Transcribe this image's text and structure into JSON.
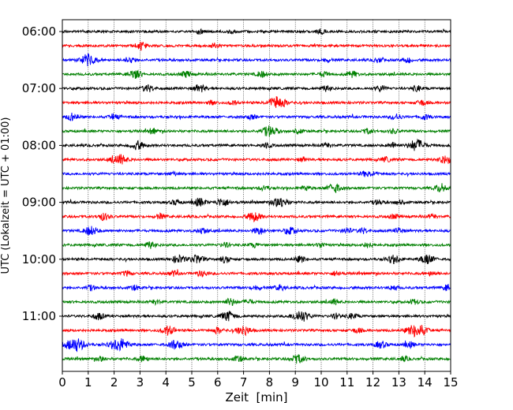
{
  "chart_data": {
    "type": "line",
    "title": "",
    "xlabel": "Zeit  [min]",
    "ylabel": "UTC (Lokalzeit = UTC + 01:00)",
    "xlim": [
      0,
      15
    ],
    "x_ticks": [
      0,
      1,
      2,
      3,
      4,
      5,
      6,
      7,
      8,
      9,
      10,
      11,
      12,
      13,
      14,
      15
    ],
    "x_grid": true,
    "y_grid": false,
    "legend": "none",
    "row_interval_minutes": 15,
    "y_ticks": [
      {
        "label": "06:00",
        "row": 0
      },
      {
        "label": "07:00",
        "row": 4
      },
      {
        "label": "08:00",
        "row": 8
      },
      {
        "label": "09:00",
        "row": 12
      },
      {
        "label": "10:00",
        "row": 16
      },
      {
        "label": "11:00",
        "row": 20
      }
    ],
    "color_cycle": [
      "#000000",
      "#ff0000",
      "#0000ff",
      "#008000"
    ],
    "series": [
      {
        "start": "06:00",
        "events": [
          [
            5.3,
            1.2
          ],
          [
            10.0,
            1.1
          ],
          [
            6.5,
            0.8
          ]
        ]
      },
      {
        "start": "06:15",
        "events": [
          [
            3.0,
            1.3
          ],
          [
            5.9,
            1.0
          ],
          [
            3.1,
            0.9
          ]
        ]
      },
      {
        "start": "06:30",
        "events": [
          [
            1.0,
            2.6
          ],
          [
            2.6,
            1.4
          ],
          [
            10.2,
            1.0
          ],
          [
            12.2,
            1.0
          ],
          [
            13.3,
            1.2
          ]
        ]
      },
      {
        "start": "06:45",
        "events": [
          [
            2.8,
            1.9
          ],
          [
            4.8,
            1.4
          ],
          [
            7.7,
            1.3
          ],
          [
            10.1,
            1.1
          ],
          [
            11.2,
            1.3
          ]
        ]
      },
      {
        "start": "07:00",
        "events": [
          [
            3.3,
            1.6
          ],
          [
            5.3,
            1.7
          ],
          [
            10.2,
            1.2
          ],
          [
            12.3,
            1.2
          ],
          [
            13.7,
            1.2
          ]
        ]
      },
      {
        "start": "07:15",
        "events": [
          [
            8.3,
            2.9
          ],
          [
            13.9,
            1.2
          ],
          [
            5.8,
            1.0
          ],
          [
            6.6,
            0.9
          ]
        ]
      },
      {
        "start": "07:30",
        "events": [
          [
            0.4,
            1.6
          ],
          [
            2.0,
            1.2
          ],
          [
            7.3,
            1.2
          ],
          [
            12.9,
            1.3
          ],
          [
            14.0,
            1.1
          ]
        ]
      },
      {
        "start": "07:45",
        "events": [
          [
            3.5,
            1.2
          ],
          [
            8.0,
            2.4
          ],
          [
            9.1,
            1.1
          ],
          [
            11.8,
            1.1
          ],
          [
            12.8,
            1.0
          ]
        ]
      },
      {
        "start": "08:00",
        "events": [
          [
            2.9,
            1.9
          ],
          [
            13.7,
            2.6
          ],
          [
            12.8,
            1.2
          ],
          [
            7.9,
            1.1
          ],
          [
            10.2,
            1.0
          ]
        ]
      },
      {
        "start": "08:15",
        "events": [
          [
            2.2,
            2.3
          ],
          [
            14.8,
            1.8
          ],
          [
            12.5,
            1.0
          ],
          [
            9.3,
            1.0
          ]
        ]
      },
      {
        "start": "08:30",
        "events": [
          [
            11.7,
            1.1
          ],
          [
            12.0,
            1.0
          ],
          [
            4.3,
            0.8
          ]
        ]
      },
      {
        "start": "08:45",
        "events": [
          [
            10.5,
            2.0
          ],
          [
            14.6,
            1.6
          ],
          [
            7.8,
            1.1
          ],
          [
            9.4,
            1.0
          ]
        ]
      },
      {
        "start": "09:00",
        "events": [
          [
            5.3,
            1.8
          ],
          [
            6.2,
            1.8
          ],
          [
            8.4,
            2.4
          ],
          [
            4.4,
            1.2
          ],
          [
            12.2,
            1.1
          ],
          [
            13.0,
            1.1
          ]
        ]
      },
      {
        "start": "09:15",
        "events": [
          [
            1.6,
            1.6
          ],
          [
            7.4,
            2.1
          ],
          [
            3.8,
            1.2
          ],
          [
            12.8,
            1.0
          ],
          [
            14.3,
            1.0
          ]
        ]
      },
      {
        "start": "09:30",
        "events": [
          [
            1.1,
            2.0
          ],
          [
            5.4,
            1.4
          ],
          [
            7.6,
            1.6
          ],
          [
            8.8,
            1.6
          ],
          [
            11.0,
            1.2
          ],
          [
            11.6,
            1.2
          ],
          [
            13.0,
            1.1
          ]
        ]
      },
      {
        "start": "09:45",
        "events": [
          [
            3.4,
            1.4
          ],
          [
            6.3,
            1.0
          ],
          [
            7.4,
            1.0
          ],
          [
            10.0,
            1.1
          ],
          [
            11.8,
            1.1
          ]
        ]
      },
      {
        "start": "10:00",
        "events": [
          [
            4.5,
            1.8
          ],
          [
            5.2,
            1.9
          ],
          [
            12.8,
            1.8
          ],
          [
            14.1,
            2.1
          ],
          [
            6.3,
            1.4
          ],
          [
            9.2,
            1.3
          ]
        ]
      },
      {
        "start": "10:15",
        "events": [
          [
            5.4,
            1.3
          ],
          [
            2.5,
            1.1
          ],
          [
            4.3,
            1.1
          ],
          [
            10.6,
            1.1
          ],
          [
            14.3,
            1.0
          ]
        ]
      },
      {
        "start": "10:30",
        "events": [
          [
            1.1,
            1.1
          ],
          [
            2.8,
            1.0
          ],
          [
            7.5,
            1.2
          ],
          [
            8.4,
            1.2
          ],
          [
            12.8,
            1.1
          ],
          [
            14.9,
            1.3
          ]
        ]
      },
      {
        "start": "10:45",
        "events": [
          [
            6.5,
            1.6
          ],
          [
            7.2,
            1.1
          ],
          [
            10.5,
            1.2
          ],
          [
            3.6,
            1.0
          ],
          [
            13.6,
            1.0
          ]
        ]
      },
      {
        "start": "11:00",
        "events": [
          [
            1.4,
            1.5
          ],
          [
            6.4,
            2.2
          ],
          [
            9.2,
            2.6
          ],
          [
            10.6,
            1.2
          ],
          [
            11.2,
            1.2
          ]
        ]
      },
      {
        "start": "11:15",
        "events": [
          [
            4.1,
            2.0
          ],
          [
            7.0,
            2.1
          ],
          [
            13.7,
            3.1
          ],
          [
            6.0,
            1.3
          ],
          [
            11.4,
            1.1
          ]
        ]
      },
      {
        "start": "11:30",
        "events": [
          [
            0.5,
            3.1
          ],
          [
            2.2,
            3.0
          ],
          [
            4.4,
            2.1
          ],
          [
            12.3,
            1.5
          ],
          [
            13.4,
            1.3
          ]
        ]
      },
      {
        "start": "11:45",
        "events": [
          [
            9.1,
            1.9
          ],
          [
            3.1,
            1.3
          ],
          [
            6.8,
            1.2
          ],
          [
            1.5,
            1.0
          ],
          [
            13.2,
            1.0
          ]
        ]
      }
    ]
  }
}
